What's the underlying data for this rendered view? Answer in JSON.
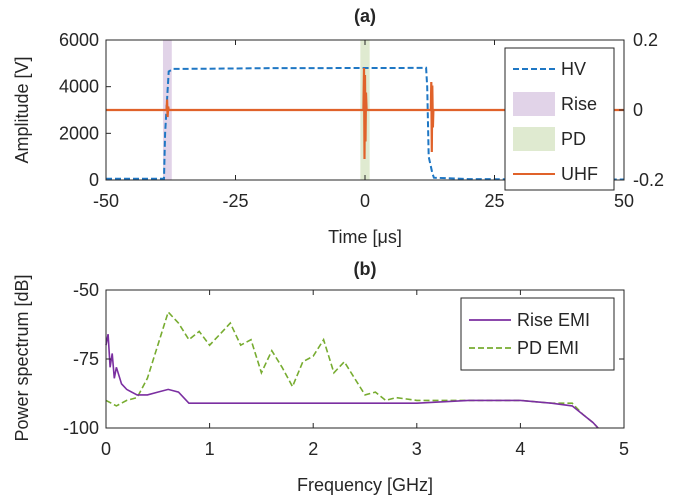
{
  "chart_data": [
    {
      "id": "a",
      "type": "line",
      "title": "(a)",
      "xlabel": "Time [μs]",
      "ylabel": "Amplitude [V]",
      "xlim": [
        -50,
        50
      ],
      "ylim": [
        0,
        6000
      ],
      "y2lim": [
        -0.2,
        0.2
      ],
      "x_ticks": [
        -50,
        -25,
        0,
        25,
        50
      ],
      "y_ticks": [
        0,
        2000,
        4000,
        6000
      ],
      "y2_ticks": [
        -0.2,
        0,
        0.2
      ],
      "x_tick_labels": [
        "-50",
        "-25",
        "0",
        "25",
        "50"
      ],
      "y_tick_labels": [
        "0",
        "2000",
        "4000",
        "6000"
      ],
      "y2_tick_labels": [
        "-0.2",
        "0",
        "0.2"
      ],
      "legend_position": "right",
      "shaded_regions": [
        {
          "name": "Rise",
          "x_start": -39,
          "x_end": -37.3,
          "color": "#e1d3e8"
        },
        {
          "name": "PD",
          "x_start": -0.9,
          "x_end": 0.9,
          "color": "#dfead0"
        }
      ],
      "series": [
        {
          "name": "HV",
          "axis": "left",
          "style": "dashed",
          "color": "#1f77c4",
          "x": [
            -50,
            -38.8,
            -38.6,
            -37.9,
            -37.0,
            -30,
            -20,
            -10,
            0,
            5,
            10,
            11.8,
            12.0,
            12.3,
            13.0,
            13.3,
            20,
            30,
            40,
            50
          ],
          "y": [
            50,
            50,
            2000,
            4650,
            4760,
            4770,
            4790,
            4795,
            4800,
            4800,
            4805,
            4810,
            4000,
            1000,
            300,
            100,
            40,
            30,
            20,
            20
          ]
        },
        {
          "name": "UHF",
          "axis": "right",
          "style": "solid",
          "color": "#e0622a",
          "x": [
            -50,
            -38.3,
            -38.2,
            -38.1,
            -38.0,
            -37.9,
            -0.3,
            -0.2,
            -0.1,
            0.0,
            0.1,
            0.2,
            0.3,
            12.7,
            12.8,
            12.9,
            13.0,
            13.1,
            13.2,
            50
          ],
          "y": [
            0,
            0,
            0.03,
            -0.02,
            0.01,
            0,
            0,
            0.12,
            -0.14,
            0.1,
            -0.09,
            0.05,
            0,
            0,
            0.08,
            -0.12,
            0.07,
            -0.05,
            0,
            0
          ]
        }
      ]
    },
    {
      "id": "b",
      "type": "line",
      "title": "(b)",
      "xlabel": "Frequency [GHz]",
      "ylabel": "Power spectrum [dB]",
      "xlim": [
        0,
        5
      ],
      "ylim": [
        -100,
        -50
      ],
      "x_ticks": [
        0,
        1,
        2,
        3,
        4,
        5
      ],
      "y_ticks": [
        -100,
        -75,
        -50
      ],
      "x_tick_labels": [
        "0",
        "1",
        "2",
        "3",
        "4",
        "5"
      ],
      "y_tick_labels": [
        "-100",
        "-75",
        "-50"
      ],
      "legend_position": "top-right",
      "series": [
        {
          "name": "Rise EMI",
          "style": "solid",
          "color": "#7b2fa1",
          "x": [
            0,
            0.02,
            0.04,
            0.06,
            0.08,
            0.1,
            0.15,
            0.2,
            0.3,
            0.4,
            0.5,
            0.6,
            0.7,
            0.8,
            1.0,
            1.5,
            2.0,
            2.5,
            3.0,
            3.5,
            4.0,
            4.3,
            4.5,
            4.6,
            4.7,
            4.75
          ],
          "y": [
            -70,
            -66,
            -78,
            -73,
            -82,
            -78,
            -84,
            -86,
            -88,
            -88,
            -87,
            -86,
            -87,
            -91,
            -91,
            -91,
            -91,
            -91,
            -91,
            -90,
            -90,
            -91,
            -92,
            -95,
            -98,
            -100
          ]
        },
        {
          "name": "PD EMI",
          "style": "dashed",
          "color": "#77ac30",
          "x": [
            0,
            0.1,
            0.2,
            0.3,
            0.4,
            0.5,
            0.6,
            0.7,
            0.8,
            0.9,
            1.0,
            1.1,
            1.2,
            1.3,
            1.4,
            1.5,
            1.6,
            1.7,
            1.8,
            1.9,
            2.0,
            2.1,
            2.2,
            2.3,
            2.4,
            2.5,
            2.6,
            2.7,
            2.8,
            3.0,
            3.5,
            4.0,
            4.3,
            4.5,
            4.6,
            4.7,
            4.75
          ],
          "y": [
            -90,
            -92,
            -90,
            -89,
            -82,
            -70,
            -58,
            -62,
            -68,
            -65,
            -70,
            -66,
            -62,
            -70,
            -68,
            -80,
            -72,
            -78,
            -85,
            -76,
            -74,
            -68,
            -80,
            -76,
            -82,
            -88,
            -87,
            -90,
            -89,
            -90,
            -90,
            -90,
            -91,
            -91,
            -95,
            -98,
            -100
          ]
        }
      ]
    }
  ]
}
